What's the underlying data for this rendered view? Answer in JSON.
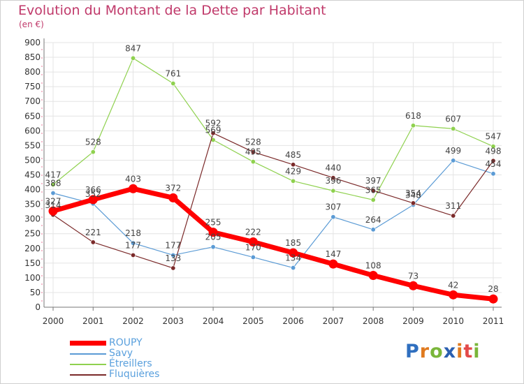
{
  "title": "Evolution du Montant de la Dette par Habitant",
  "unit_label": "(en €)",
  "brand": {
    "letters": [
      "P",
      "r",
      "o",
      "x",
      "i",
      "t",
      "i"
    ],
    "colors": [
      "#2f6fbf",
      "#e07a1f",
      "#7ab63a",
      "#2a5fb0",
      "#e07a1f",
      "#e34a4a",
      "#7ab63a"
    ]
  },
  "chart_data": {
    "type": "line",
    "title": "Evolution du Montant de la Dette par Habitant",
    "ylabel": "(en €)",
    "xlabel": "",
    "categories": [
      "2000",
      "2001",
      "2002",
      "2003",
      "2004",
      "2005",
      "2006",
      "2007",
      "2008",
      "2009",
      "2010",
      "2011"
    ],
    "ylim": [
      0,
      900
    ],
    "yticks": [
      0,
      50,
      100,
      150,
      200,
      250,
      300,
      350,
      400,
      450,
      500,
      550,
      600,
      650,
      700,
      750,
      800,
      850,
      900
    ],
    "grid": true,
    "legend_position": "bottom-left",
    "series": [
      {
        "name": "ROUPY",
        "color": "#ff0000",
        "width": 7,
        "marker_r": 6.5,
        "values": [
          327,
          366,
          403,
          372,
          255,
          222,
          185,
          147,
          108,
          73,
          42,
          28
        ]
      },
      {
        "name": "Savy",
        "color": "#5b9bd5",
        "width": 1.2,
        "marker_r": 3.2,
        "values": [
          388,
          352,
          218,
          177,
          205,
          170,
          134,
          307,
          264,
          348,
          499,
          454
        ]
      },
      {
        "name": "Étreillers",
        "color": "#8fd14f",
        "width": 1.2,
        "marker_r": 3.2,
        "values": [
          417,
          528,
          847,
          761,
          569,
          495,
          429,
          396,
          365,
          618,
          607,
          547
        ]
      },
      {
        "name": "Fluquières",
        "color": "#7b2a2a",
        "width": 1.2,
        "marker_r": 3.2,
        "values": [
          314,
          221,
          177,
          133,
          592,
          528,
          485,
          440,
          397,
          354,
          311,
          498
        ]
      }
    ]
  }
}
